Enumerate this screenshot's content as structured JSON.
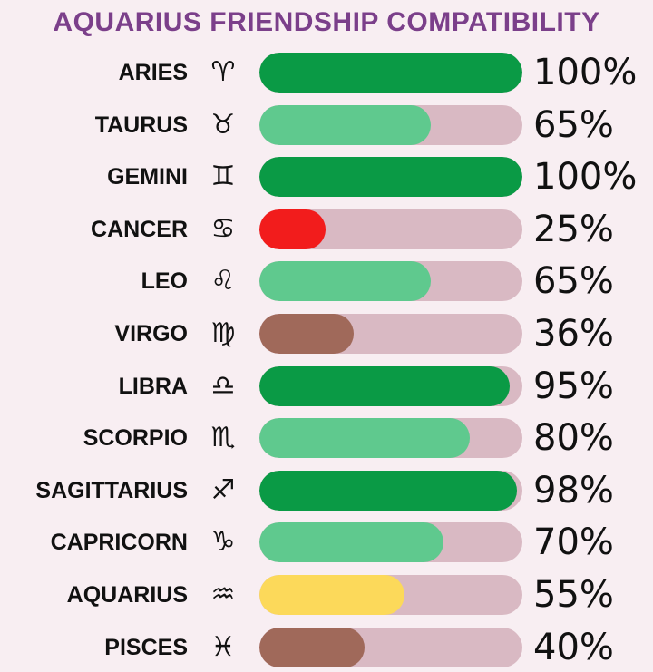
{
  "chart_data": {
    "type": "bar",
    "orientation": "horizontal",
    "title": "AQUARIUS FRIENDSHIP COMPATIBILITY",
    "categories": [
      "ARIES",
      "TAURUS",
      "GEMINI",
      "CANCER",
      "LEO",
      "VIRGO",
      "LIBRA",
      "SCORPIO",
      "SAGITTARIUS",
      "CAPRICORN",
      "AQUARIUS",
      "PISCES"
    ],
    "symbols": [
      "♈︎",
      "♉︎",
      "♊︎",
      "♋︎",
      "♌︎",
      "♍︎",
      "♎︎",
      "♏︎",
      "♐︎",
      "♑︎",
      "♒︎",
      "♓︎"
    ],
    "values": [
      100,
      65,
      100,
      25,
      65,
      36,
      95,
      80,
      98,
      70,
      55,
      40
    ],
    "labels": [
      "100%",
      "65%",
      "100%",
      "25%",
      "65%",
      "36%",
      "95%",
      "80%",
      "98%",
      "70%",
      "55%",
      "40%"
    ],
    "colors": [
      "#0a9a45",
      "#5fc98e",
      "#0a9a45",
      "#f21c1c",
      "#5fc98e",
      "#a0695a",
      "#0a9a45",
      "#5fc98e",
      "#0a9a45",
      "#5fc98e",
      "#fcd95a",
      "#a0695a"
    ],
    "track_color": "#d9b9c3",
    "xlim": [
      0,
      100
    ],
    "grid": false
  }
}
